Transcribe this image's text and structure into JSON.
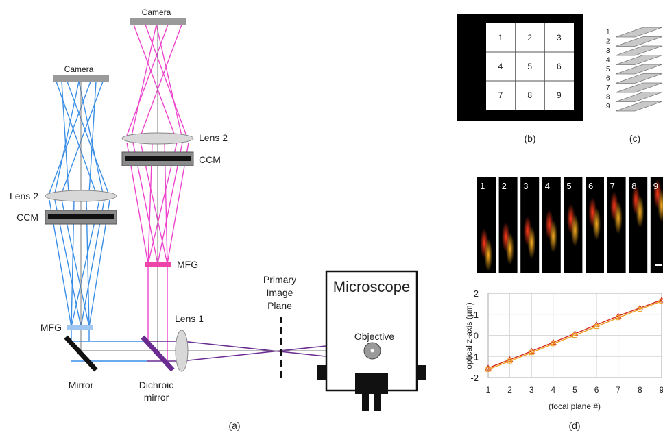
{
  "panel_a": {
    "camera_left": "Camera",
    "camera_right": "Camera",
    "lens2_left": "Lens 2",
    "lens2_right": "Lens 2",
    "ccm_left": "CCM",
    "ccm_right": "CCM",
    "mfg_left": "MFG",
    "mfg_right": "MFG",
    "mirror": "Mirror",
    "dichroic_line1": "Dichroic",
    "dichroic_line2": "mirror",
    "lens1": "Lens 1",
    "primary_line1": "Primary",
    "primary_line2": "Image",
    "primary_line3": "Plane",
    "microscope": "Microscope",
    "objective": "Objective",
    "caption": "(a)",
    "colors": {
      "blue": "#3a8ee6",
      "magenta": "#ee44cc",
      "purple": "#6a2c91"
    }
  },
  "panel_b": {
    "cells": [
      "1",
      "2",
      "3",
      "4",
      "5",
      "6",
      "7",
      "8",
      "9"
    ],
    "caption": "(b)"
  },
  "panel_c": {
    "planes": [
      "1",
      "2",
      "3",
      "4",
      "5",
      "6",
      "7",
      "8",
      "9"
    ],
    "caption": "(c)"
  },
  "panel_d": {
    "tiles": [
      "1",
      "2",
      "3",
      "4",
      "5",
      "6",
      "7",
      "8",
      "9"
    ],
    "caption": "(d)"
  },
  "chart_data": {
    "type": "line",
    "x": [
      1,
      2,
      3,
      4,
      5,
      6,
      7,
      8,
      9
    ],
    "xlabel": "(focal plane #)",
    "ylabel": "optical z-axis (µm)",
    "xlim": [
      1,
      9
    ],
    "ylim": [
      -2,
      2
    ],
    "yticks": [
      "2",
      "1",
      "0",
      "-1",
      "-2"
    ],
    "xticks": [
      "1",
      "2",
      "3",
      "4",
      "5",
      "6",
      "7",
      "8",
      "9"
    ],
    "grid": true,
    "series": [
      {
        "values": [
          -1.55,
          -1.15,
          -0.75,
          -0.33,
          0.08,
          0.5,
          0.92,
          1.3,
          1.68
        ],
        "color": "#d42a1a",
        "marker": "triangle"
      },
      {
        "values": [
          -1.62,
          -1.22,
          -0.82,
          -0.4,
          0.0,
          0.42,
          0.84,
          1.24,
          1.62
        ],
        "color": "#f0a020",
        "marker": "square"
      }
    ]
  }
}
